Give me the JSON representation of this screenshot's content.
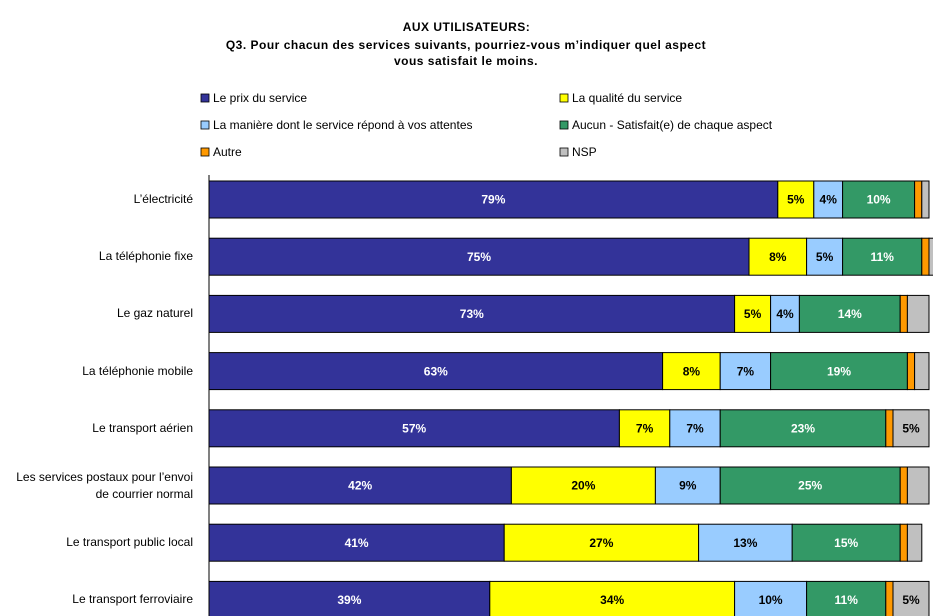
{
  "chart_data": {
    "type": "stacked-bar-horizontal",
    "title": "AUX UTILISATEURS:",
    "subtitle": "Q3. Pour chacun des services suivants, pourriez-vous m’indiquer quel aspect vous satisfait le moins.",
    "categories": [
      "L’électricité",
      "La téléphonie fixe",
      "Le gaz naturel",
      "La téléphonie mobile",
      "Le transport aérien",
      "Les services postaux pour l’envoi de courrier normal",
      "Le transport public local",
      "Le transport ferroviaire"
    ],
    "series": [
      {
        "name": "Le prix du service",
        "color": "#333399",
        "values": [
          79,
          75,
          73,
          63,
          57,
          42,
          41,
          39
        ],
        "value_labels": [
          "79%",
          "75%",
          "73%",
          "63%",
          "57%",
          "42%",
          "41%",
          "39%"
        ]
      },
      {
        "name": "La qualité du service",
        "color": "#ffff00",
        "values": [
          5,
          8,
          5,
          8,
          7,
          20,
          27,
          34
        ],
        "value_labels": [
          "5%",
          "8%",
          "5%",
          "8%",
          "7%",
          "20%",
          "27%",
          "34%"
        ]
      },
      {
        "name": "La  manière dont le service répond à vos attentes",
        "color": "#99ccff",
        "values": [
          4,
          5,
          4,
          7,
          7,
          9,
          13,
          10
        ],
        "value_labels": [
          "4%",
          "5%",
          "4%",
          "7%",
          "7%",
          "9%",
          "13%",
          "10%"
        ]
      },
      {
        "name": "Aucun - Satisfait(e) de chaque aspect",
        "color": "#339966",
        "values": [
          10,
          11,
          14,
          19,
          23,
          25,
          15,
          11
        ],
        "value_labels": [
          "10%",
          "11%",
          "14%",
          "19%",
          "23%",
          "25%",
          "15%",
          "11%"
        ]
      },
      {
        "name": "Autre",
        "color": "#ff9900",
        "values": [
          1,
          1,
          1,
          1,
          1,
          1,
          1,
          1
        ],
        "value_labels": [
          null,
          null,
          null,
          null,
          null,
          null,
          null,
          null
        ]
      },
      {
        "name": "NSP",
        "color": "#c0c0c0",
        "values": [
          1,
          1,
          3,
          2,
          5,
          3,
          2,
          5
        ],
        "value_labels": [
          null,
          null,
          null,
          null,
          "5%",
          null,
          null,
          "5%"
        ]
      }
    ]
  }
}
